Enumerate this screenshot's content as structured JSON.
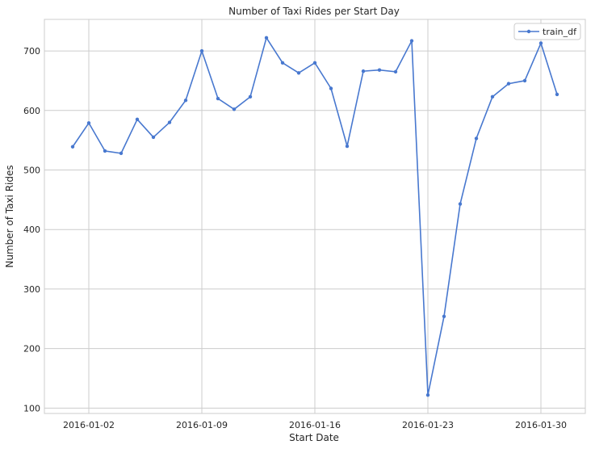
{
  "chart_data": {
    "type": "line",
    "title": "Number of Taxi Rides per Start Day",
    "xlabel": "Start Date",
    "ylabel": "Number of Taxi Rides",
    "x": [
      "2016-01-01",
      "2016-01-02",
      "2016-01-03",
      "2016-01-04",
      "2016-01-05",
      "2016-01-06",
      "2016-01-07",
      "2016-01-08",
      "2016-01-09",
      "2016-01-10",
      "2016-01-11",
      "2016-01-12",
      "2016-01-13",
      "2016-01-14",
      "2016-01-15",
      "2016-01-16",
      "2016-01-17",
      "2016-01-18",
      "2016-01-19",
      "2016-01-20",
      "2016-01-21",
      "2016-01-22",
      "2016-01-23",
      "2016-01-24",
      "2016-01-25",
      "2016-01-26",
      "2016-01-27",
      "2016-01-28",
      "2016-01-29",
      "2016-01-30",
      "2016-01-31"
    ],
    "xticks": [
      "2016-01-02",
      "2016-01-09",
      "2016-01-16",
      "2016-01-23",
      "2016-01-30"
    ],
    "yticks": [
      100,
      200,
      300,
      400,
      500,
      600,
      700
    ],
    "xlim": [
      "2015-12-30.25",
      "2016-02-01.75"
    ],
    "ylim": [
      91,
      753
    ],
    "grid": true,
    "legend_position": "top-right",
    "series": [
      {
        "name": "train_df",
        "color": "#4878cf",
        "marker": "dot",
        "values": [
          539,
          579,
          532,
          528,
          585,
          555,
          580,
          617,
          700,
          620,
          602,
          623,
          722,
          680,
          663,
          680,
          637,
          540,
          666,
          668,
          665,
          717,
          122,
          254,
          443,
          553,
          623,
          645,
          650,
          713,
          627
        ]
      }
    ]
  }
}
